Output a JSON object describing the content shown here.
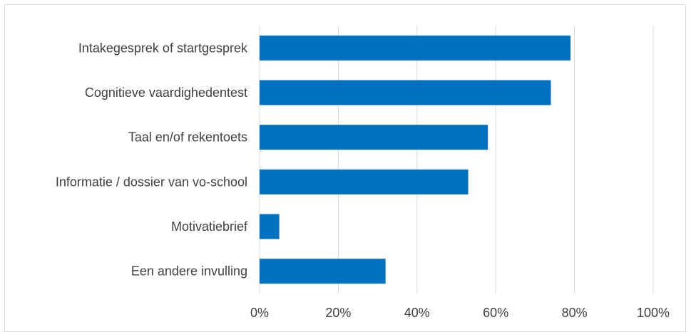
{
  "chart_data": {
    "type": "bar",
    "orientation": "horizontal",
    "categories": [
      "Intakegesprek of startgesprek",
      "Cognitieve vaardighedentest",
      "Taal en/of rekentoets",
      "Informatie / dossier van vo-school",
      "Motivatiebrief",
      "Een andere invulling"
    ],
    "values": [
      79,
      74,
      58,
      53,
      5,
      32
    ],
    "xlim": [
      0,
      100
    ],
    "x_ticks": [
      "0%",
      "20%",
      "40%",
      "60%",
      "80%",
      "100%"
    ],
    "grid": "vertical",
    "legend": "none",
    "bar_color": "#0070C0",
    "title": "",
    "xlabel": "",
    "ylabel": ""
  }
}
